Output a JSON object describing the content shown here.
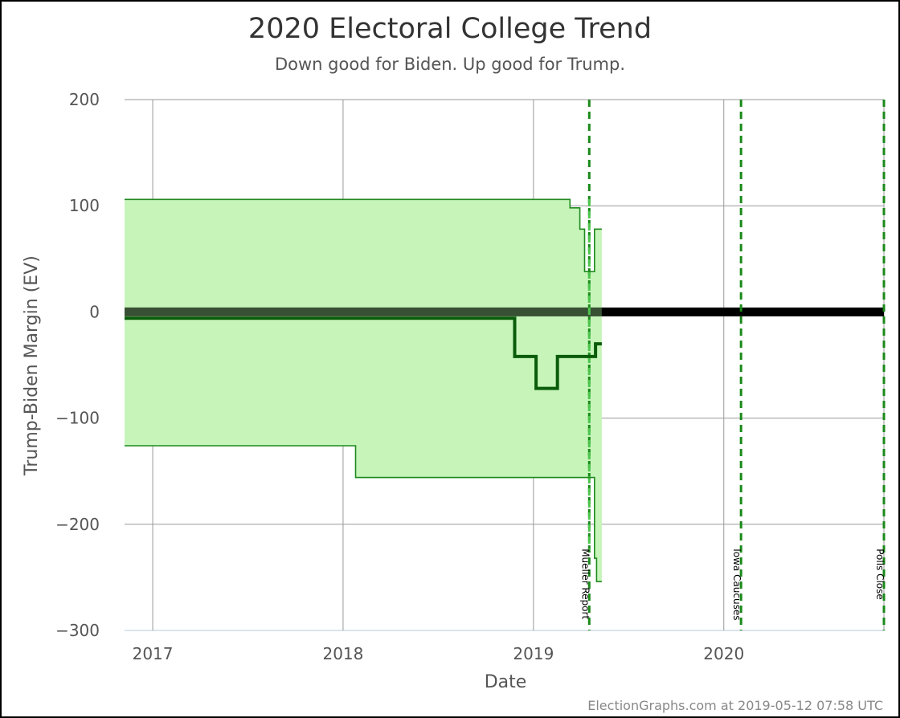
{
  "chart_data": {
    "type": "line",
    "title": "2020 Electoral College Trend",
    "subtitle": "Down good for Biden. Up good for Trump.",
    "xlabel": "Date",
    "ylabel": "Trump-Biden Margin (EV)",
    "credit": "ElectionGraphs.com at 2019-05-12 07:58 UTC",
    "x_ticks": [
      "2017",
      "2018",
      "2019",
      "2020"
    ],
    "y_ticks": [
      "200",
      "100",
      "0",
      "−100",
      "−200",
      "−300"
    ],
    "xlim": [
      "2016-11-08",
      "2020-11-03"
    ],
    "ylim": [
      -300,
      200
    ],
    "grid": true,
    "colors": {
      "band_fill": "#c6f4b9",
      "band_edge": "#1f8a1f",
      "expected": "#0a5c0a",
      "tie_line": "#000000",
      "event_line": "#1a8a1a",
      "event_line_light": "#4cc44c"
    },
    "series": [
      {
        "role": "upper-bound",
        "x": [
          "2016-11-08",
          "2019-03-12",
          "2019-03-12",
          "2019-03-31",
          "2019-03-31",
          "2019-04-09",
          "2019-04-09",
          "2019-04-28",
          "2019-04-28",
          "2019-05-12"
        ],
        "y": [
          106,
          106,
          98,
          98,
          78,
          78,
          38,
          38,
          78,
          78
        ]
      },
      {
        "role": "expected",
        "x": [
          "2016-11-08",
          "2018-11-26",
          "2018-11-26",
          "2019-01-06",
          "2019-01-06",
          "2019-02-16",
          "2019-02-16",
          "2019-04-30",
          "2019-04-30",
          "2019-05-12"
        ],
        "y": [
          -6,
          -6,
          -42,
          -42,
          -72,
          -72,
          -42,
          -42,
          -30,
          -30
        ]
      },
      {
        "role": "lower-bound",
        "x": [
          "2016-11-08",
          "2018-01-25",
          "2018-01-25",
          "2019-04-28",
          "2019-04-28",
          "2019-05-02",
          "2019-05-02",
          "2019-05-12"
        ],
        "y": [
          -126,
          -126,
          -156,
          -156,
          -232,
          -232,
          -254,
          -254
        ]
      }
    ],
    "events": [
      {
        "label": "Mueller Report",
        "date": "2019-04-18"
      },
      {
        "label": "Iowa Caucuses",
        "date": "2020-02-03"
      },
      {
        "label": "Polls Close",
        "date": "2020-11-03"
      }
    ]
  }
}
